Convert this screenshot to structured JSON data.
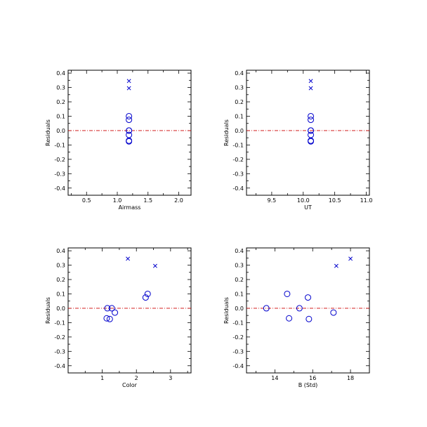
{
  "colors": {
    "marker": "#0000cc",
    "zero_line": "#cc0000",
    "axes": "#000000"
  },
  "markers": {
    "circle_series": "open-circle",
    "cross_series": "x-mark"
  },
  "chart_data": [
    {
      "type": "scatter",
      "xlabel": "Airmass",
      "ylabel": "Residuals",
      "xlim": [
        0.2,
        2.2
      ],
      "ylim": [
        -0.45,
        0.42
      ],
      "xticks": [
        0.5,
        1.0,
        1.5,
        2.0
      ],
      "xtick_labels": [
        "0.5",
        "1.0",
        "1.5",
        "2.0"
      ],
      "yticks": [
        0.4,
        0.3,
        0.2,
        0.1,
        0.0,
        -0.1,
        -0.2,
        -0.3,
        -0.4
      ],
      "ytick_labels": [
        "0.4",
        "0.3",
        "0.2",
        "0.1",
        "0.0",
        "-0.1",
        "-0.2",
        "-0.3",
        "-0.4"
      ],
      "zero_line": 0.0,
      "series": [
        {
          "marker": "circle",
          "x": [
            1.19,
            1.19,
            1.19,
            1.19,
            1.19,
            1.19,
            1.19
          ],
          "y": [
            0.1,
            0.075,
            0.0,
            -0.03,
            -0.07,
            -0.075,
            0.0
          ]
        },
        {
          "marker": "x",
          "x": [
            1.19,
            1.19
          ],
          "y": [
            0.345,
            0.295
          ]
        }
      ]
    },
    {
      "type": "scatter",
      "xlabel": "UT",
      "ylabel": "Residuals",
      "xlim": [
        9.1,
        11.05
      ],
      "ylim": [
        -0.45,
        0.42
      ],
      "xticks": [
        9.5,
        10.0,
        10.5,
        11.0
      ],
      "xtick_labels": [
        "9.5",
        "10.0",
        "10.5",
        "11.0"
      ],
      "yticks": [
        0.4,
        0.3,
        0.2,
        0.1,
        0.0,
        -0.1,
        -0.2,
        -0.3,
        -0.4
      ],
      "ytick_labels": [
        "0.4",
        "0.3",
        "0.2",
        "0.1",
        "0.0",
        "-0.1",
        "-0.2",
        "-0.3",
        "-0.4"
      ],
      "zero_line": 0.0,
      "series": [
        {
          "marker": "circle",
          "x": [
            10.12,
            10.12,
            10.12,
            10.12,
            10.12,
            10.12,
            10.12
          ],
          "y": [
            0.1,
            0.075,
            0.0,
            -0.03,
            -0.07,
            -0.075,
            0.0
          ]
        },
        {
          "marker": "x",
          "x": [
            10.12,
            10.12
          ],
          "y": [
            0.345,
            0.295
          ]
        }
      ]
    },
    {
      "type": "scatter",
      "xlabel": "Color",
      "ylabel": "Residuals",
      "xlim": [
        0.0,
        3.6
      ],
      "ylim": [
        -0.45,
        0.42
      ],
      "xticks": [
        1,
        2,
        3
      ],
      "xtick_labels": [
        "1",
        "2",
        "3"
      ],
      "yticks": [
        0.4,
        0.3,
        0.2,
        0.1,
        0.0,
        -0.1,
        -0.2,
        -0.3,
        -0.4
      ],
      "ytick_labels": [
        "0.4",
        "0.3",
        "0.2",
        "0.1",
        "0.0",
        "-0.1",
        "-0.2",
        "-0.3",
        "-0.4"
      ],
      "zero_line": 0.0,
      "series": [
        {
          "marker": "circle",
          "x": [
            2.33,
            2.27,
            1.28,
            1.37,
            1.13,
            1.22,
            1.15
          ],
          "y": [
            0.1,
            0.075,
            0.0,
            -0.03,
            -0.07,
            -0.075,
            0.0
          ]
        },
        {
          "marker": "x",
          "x": [
            1.75,
            2.55
          ],
          "y": [
            0.345,
            0.295
          ]
        }
      ]
    },
    {
      "type": "scatter",
      "xlabel": "B (Std)",
      "ylabel": "Residuals",
      "xlim": [
        12.5,
        19.0
      ],
      "ylim": [
        -0.45,
        0.42
      ],
      "xticks": [
        14,
        16,
        18
      ],
      "xtick_labels": [
        "14",
        "16",
        "18"
      ],
      "yticks": [
        0.4,
        0.3,
        0.2,
        0.1,
        0.0,
        -0.1,
        -0.2,
        -0.3,
        -0.4
      ],
      "ytick_labels": [
        "0.4",
        "0.3",
        "0.2",
        "0.1",
        "0.0",
        "-0.1",
        "-0.2",
        "-0.3",
        "-0.4"
      ],
      "zero_line": 0.0,
      "series": [
        {
          "marker": "circle",
          "x": [
            14.65,
            15.75,
            15.3,
            17.1,
            14.75,
            15.8,
            13.55
          ],
          "y": [
            0.1,
            0.075,
            0.0,
            -0.03,
            -0.07,
            -0.075,
            0.0
          ]
        },
        {
          "marker": "x",
          "x": [
            18.0,
            17.25
          ],
          "y": [
            0.345,
            0.295
          ]
        }
      ]
    }
  ]
}
